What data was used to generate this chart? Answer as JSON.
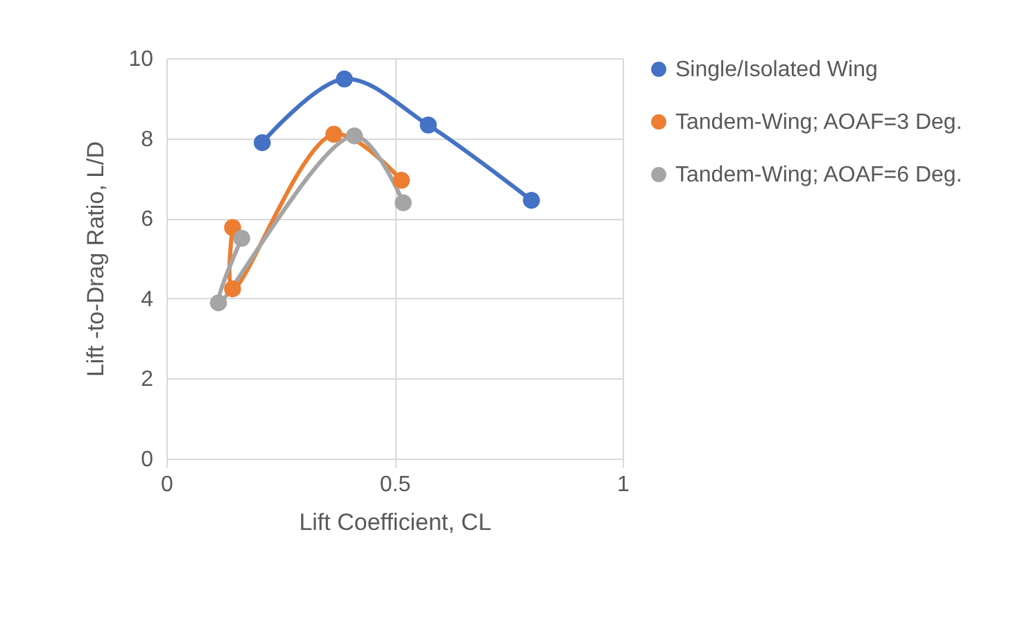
{
  "chart_data": {
    "type": "line",
    "xlabel": "Lift Coefficient, CL",
    "ylabel": "Lift -to-Drag Ratio, L/D",
    "xlim": [
      0,
      1
    ],
    "xticks": [
      0,
      0.5,
      1
    ],
    "ylim": [
      0,
      10
    ],
    "yticks": [
      0,
      2,
      4,
      6,
      8,
      10
    ],
    "grid": true,
    "legend": "right",
    "marker": "circle",
    "series": [
      {
        "name": "Single/Isolated Wing",
        "color": "#4472c4",
        "x": [
          0.21,
          0.39,
          0.574,
          0.8
        ],
        "values": [
          7.89,
          9.48,
          8.33,
          6.45
        ]
      },
      {
        "name": "Tandem-Wing; AOAF=3 Deg.",
        "color": "#ed7d31",
        "x": [
          0.145,
          0.145,
          0.367,
          0.515
        ],
        "values": [
          5.77,
          4.24,
          8.1,
          6.95
        ]
      },
      {
        "name": "Tandem-Wing; AOAF=6 Deg.",
        "color": "#a5a5a5",
        "x": [
          0.165,
          0.114,
          0.412,
          0.519
        ],
        "values": [
          5.5,
          3.89,
          8.06,
          6.39
        ]
      }
    ]
  }
}
